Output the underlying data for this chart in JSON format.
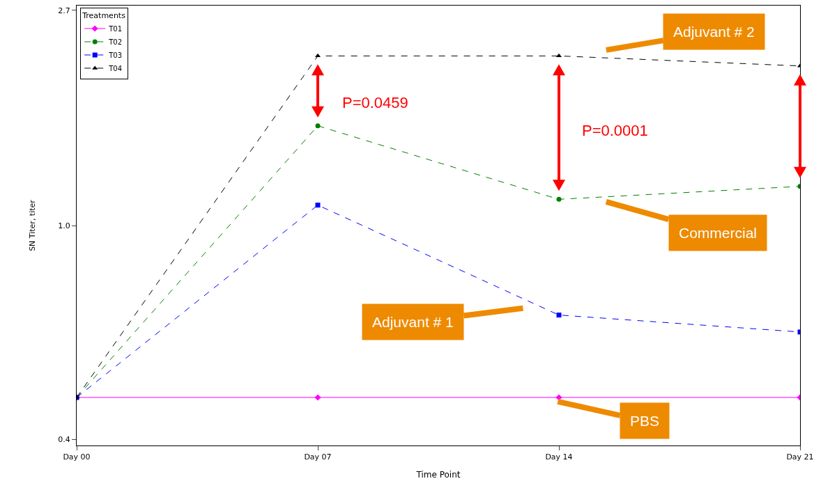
{
  "chart_data": {
    "type": "line",
    "xlabel": "Time Point",
    "ylabel": "SN Titer, titer",
    "legend_title": "Treatments",
    "categories": [
      "Day 00",
      "Day 07",
      "Day 14",
      "Day 21"
    ],
    "log": "y",
    "ylim": [
      0.36,
      2.78
    ],
    "yticks": [
      {
        "value": 0.37,
        "label": "0.4"
      },
      {
        "value": 1,
        "label": "1.0"
      },
      {
        "value": 2.72,
        "label": "2.7"
      }
    ],
    "grid": false,
    "legend": "top left",
    "series": [
      {
        "name": "T01",
        "color": "#ff00ff",
        "marker": "diamond",
        "line_style": "solid",
        "values": [
          0.45,
          0.45,
          0.45,
          0.45
        ]
      },
      {
        "name": "T02",
        "color": "#008000",
        "marker": "circle",
        "line_style": "dashed",
        "values": [
          0.45,
          1.59,
          1.13,
          1.2
        ]
      },
      {
        "name": "T03",
        "color": "#0000ff",
        "marker": "square",
        "line_style": "dashed",
        "values": [
          0.45,
          1.1,
          0.66,
          0.61
        ]
      },
      {
        "name": "T04",
        "color": "#000000",
        "marker": "triangle",
        "line_style": "dashed",
        "values": [
          0.45,
          2.2,
          2.2,
          2.1
        ]
      }
    ],
    "annotations": [
      "Adjuvant # 2",
      "Commercial",
      "Adjuvant # 1",
      "PBS",
      "P=0.0459",
      "P=0.0001"
    ]
  }
}
